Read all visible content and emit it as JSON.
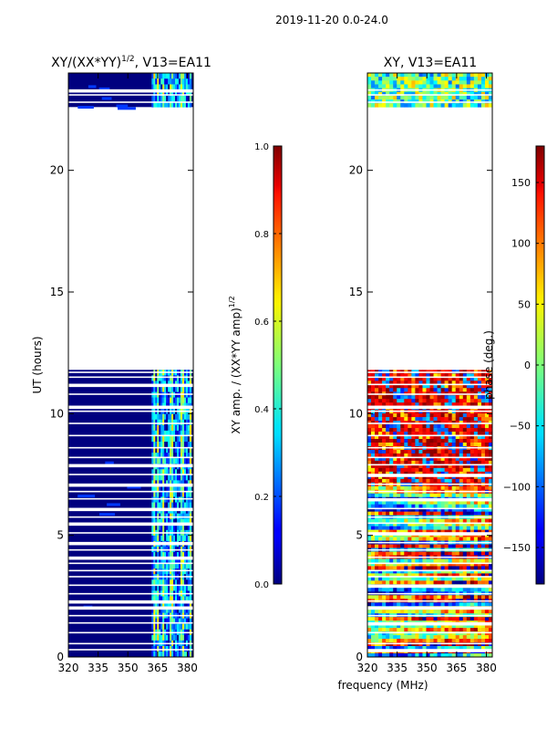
{
  "suptitle": "2019-11-20 0.0-24.0",
  "xlabel_shared": "frequency (MHz)",
  "chart_data": [
    {
      "type": "heatmap",
      "title_main": "XY/(XX*YY)",
      "title_sup": "1/2",
      "title_rest": ", V13=EA11",
      "ylabel": "UT (hours)",
      "xlim": [
        320,
        383
      ],
      "ylim": [
        0,
        24
      ],
      "xticks": [
        320,
        335,
        350,
        365,
        380
      ],
      "yticks": [
        0,
        5,
        10,
        15,
        20
      ],
      "colorbar": {
        "label_main": "XY amp. / (XX*YY amp)",
        "label_sup": "1/2",
        "range": [
          0.0,
          1.0
        ],
        "ticks": [
          "0.0",
          "0.2",
          "0.4",
          "0.6",
          "0.8",
          "1.0"
        ],
        "tick_values": [
          0.0,
          0.2,
          0.4,
          0.6,
          0.8,
          1.0
        ]
      },
      "data_ranges_hours": [
        [
          0,
          11.8
        ],
        [
          22.6,
          24.0
        ]
      ],
      "gap_hours": [
        11.8,
        22.6
      ],
      "bright_band_mhz": [
        362,
        382
      ]
    },
    {
      "type": "heatmap",
      "title_main": "XY, V13=EA11",
      "ylabel": "",
      "xlim": [
        320,
        383
      ],
      "ylim": [
        0,
        24
      ],
      "xticks": [
        320,
        335,
        350,
        365,
        380
      ],
      "yticks": [
        0,
        5,
        10,
        15,
        20
      ],
      "colorbar": {
        "label_main": "phase (deg.)",
        "range": [
          -180,
          180
        ],
        "ticks": [
          "150",
          "100",
          "50",
          "0",
          "−50",
          "−100",
          "−150"
        ],
        "tick_values": [
          150,
          100,
          50,
          0,
          -50,
          -100,
          -150
        ]
      },
      "data_ranges_hours": [
        [
          0,
          11.8
        ],
        [
          22.6,
          24.0
        ]
      ],
      "gap_hours": [
        11.8,
        22.6
      ]
    }
  ],
  "colors": {
    "low": "#00007f",
    "high": "#7f0000"
  }
}
